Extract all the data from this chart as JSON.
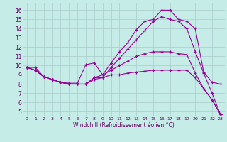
{
  "xlabel": "Windchill (Refroidissement éolien,°C)",
  "bg_color": "#c5ece6",
  "grid_color": "#aacccc",
  "line_color": "#990099",
  "x_ticks": [
    0,
    1,
    2,
    3,
    4,
    5,
    6,
    7,
    8,
    9,
    10,
    11,
    12,
    13,
    14,
    15,
    16,
    17,
    18,
    19,
    20,
    21,
    22,
    23
  ],
  "y_ticks": [
    5,
    6,
    7,
    8,
    9,
    10,
    11,
    12,
    13,
    14,
    15,
    16
  ],
  "ylim": [
    4.5,
    16.8
  ],
  "xlim": [
    -0.5,
    23.5
  ],
  "line1_x": [
    0,
    1,
    2,
    3,
    4,
    5,
    6,
    7,
    8,
    9,
    10,
    11,
    12,
    13,
    14,
    15,
    16,
    17,
    18,
    19,
    20,
    21,
    22,
    23
  ],
  "line1_y": [
    9.8,
    9.8,
    8.8,
    8.5,
    8.2,
    8.1,
    8.1,
    10.1,
    10.3,
    9.0,
    10.3,
    11.5,
    12.5,
    13.9,
    14.8,
    15.0,
    16.0,
    16.0,
    15.0,
    14.8,
    14.0,
    9.3,
    8.2,
    8.0
  ],
  "line2_x": [
    0,
    1,
    2,
    3,
    4,
    5,
    6,
    7,
    8,
    9,
    10,
    11,
    12,
    13,
    14,
    15,
    16,
    17,
    18,
    19,
    20,
    21,
    22,
    23
  ],
  "line2_y": [
    9.8,
    9.5,
    8.8,
    8.5,
    8.2,
    8.0,
    8.0,
    8.0,
    8.7,
    9.0,
    9.5,
    10.0,
    10.5,
    11.0,
    11.3,
    11.5,
    11.5,
    11.5,
    11.3,
    11.2,
    9.2,
    7.5,
    6.3,
    4.7
  ],
  "line3_x": [
    0,
    1,
    2,
    3,
    4,
    5,
    6,
    7,
    8,
    9,
    10,
    11,
    12,
    13,
    14,
    15,
    16,
    17,
    18,
    19,
    20,
    21,
    22,
    23
  ],
  "line3_y": [
    9.8,
    9.5,
    8.8,
    8.5,
    8.2,
    8.0,
    8.0,
    8.0,
    8.7,
    8.7,
    9.0,
    9.0,
    9.2,
    9.3,
    9.4,
    9.5,
    9.5,
    9.5,
    9.5,
    9.5,
    8.7,
    7.5,
    6.3,
    4.7
  ],
  "line4_x": [
    0,
    1,
    2,
    3,
    4,
    5,
    6,
    7,
    8,
    9,
    10,
    11,
    12,
    13,
    14,
    15,
    16,
    17,
    18,
    19,
    20,
    21,
    22,
    23
  ],
  "line4_y": [
    9.8,
    9.5,
    8.8,
    8.5,
    8.2,
    8.0,
    8.0,
    8.0,
    8.5,
    8.7,
    9.8,
    10.8,
    11.8,
    12.8,
    13.8,
    14.8,
    15.3,
    15.0,
    14.8,
    14.0,
    11.5,
    9.2,
    7.0,
    4.7
  ]
}
